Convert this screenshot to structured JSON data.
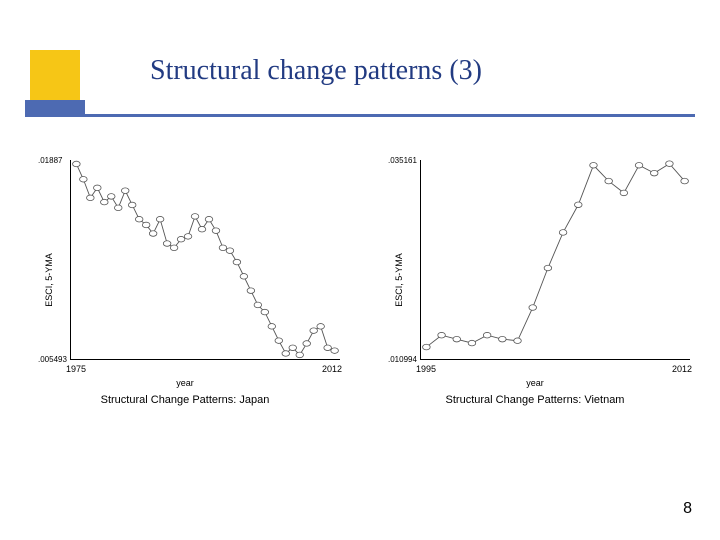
{
  "slide": {
    "title": "Structural change patterns (3)",
    "page_number": "8",
    "accent_yellow": "#f6c616",
    "accent_blue": "#4d6ab2",
    "title_color": "#223b82"
  },
  "chart_left": {
    "type": "line-scatter",
    "ylabel": "ESCI, 5-YMA",
    "xlabel": "year",
    "subtitle": "Structural Change Patterns: Japan",
    "y_tick_top": ".01887",
    "y_tick_bot": ".005493",
    "x_tick_left": "1975",
    "x_tick_right": "2012",
    "ylim": [
      0.005493,
      0.01887
    ],
    "xlim": [
      1975,
      2012
    ],
    "marker": "circle-open",
    "marker_size": 3.2,
    "line_color": "#555555",
    "line_width": 0.9,
    "background_color": "#ffffff",
    "series": [
      {
        "x": 1975,
        "y": 0.01887
      },
      {
        "x": 1976,
        "y": 0.0178
      },
      {
        "x": 1977,
        "y": 0.0165
      },
      {
        "x": 1978,
        "y": 0.0172
      },
      {
        "x": 1979,
        "y": 0.0162
      },
      {
        "x": 1980,
        "y": 0.0166
      },
      {
        "x": 1981,
        "y": 0.0158
      },
      {
        "x": 1982,
        "y": 0.017
      },
      {
        "x": 1983,
        "y": 0.016
      },
      {
        "x": 1984,
        "y": 0.015
      },
      {
        "x": 1985,
        "y": 0.0146
      },
      {
        "x": 1986,
        "y": 0.014
      },
      {
        "x": 1987,
        "y": 0.015
      },
      {
        "x": 1988,
        "y": 0.0133
      },
      {
        "x": 1989,
        "y": 0.013
      },
      {
        "x": 1990,
        "y": 0.0136
      },
      {
        "x": 1991,
        "y": 0.0138
      },
      {
        "x": 1992,
        "y": 0.0152
      },
      {
        "x": 1993,
        "y": 0.0143
      },
      {
        "x": 1994,
        "y": 0.015
      },
      {
        "x": 1995,
        "y": 0.0142
      },
      {
        "x": 1996,
        "y": 0.013
      },
      {
        "x": 1997,
        "y": 0.0128
      },
      {
        "x": 1998,
        "y": 0.012
      },
      {
        "x": 1999,
        "y": 0.011
      },
      {
        "x": 2000,
        "y": 0.01
      },
      {
        "x": 2001,
        "y": 0.009
      },
      {
        "x": 2002,
        "y": 0.0085
      },
      {
        "x": 2003,
        "y": 0.0075
      },
      {
        "x": 2004,
        "y": 0.0065
      },
      {
        "x": 2005,
        "y": 0.0056
      },
      {
        "x": 2006,
        "y": 0.006
      },
      {
        "x": 2007,
        "y": 0.0055
      },
      {
        "x": 2008,
        "y": 0.0063
      },
      {
        "x": 2009,
        "y": 0.0072
      },
      {
        "x": 2010,
        "y": 0.0075
      },
      {
        "x": 2011,
        "y": 0.006
      },
      {
        "x": 2012,
        "y": 0.0058
      }
    ]
  },
  "chart_right": {
    "type": "line-scatter",
    "ylabel": "ESCI, 5-YMA",
    "xlabel": "year",
    "subtitle": "Structural Change Patterns: Vietnam",
    "y_tick_top": ".035161",
    "y_tick_bot": ".010994",
    "x_tick_left": "1995",
    "x_tick_right": "2012",
    "ylim": [
      0.010994,
      0.035161
    ],
    "xlim": [
      1995,
      2012
    ],
    "marker": "circle-open",
    "marker_size": 3.2,
    "line_color": "#555555",
    "line_width": 0.9,
    "background_color": "#ffffff",
    "series": [
      {
        "x": 1995,
        "y": 0.012
      },
      {
        "x": 1996,
        "y": 0.0135
      },
      {
        "x": 1997,
        "y": 0.013
      },
      {
        "x": 1998,
        "y": 0.0125
      },
      {
        "x": 1999,
        "y": 0.0135
      },
      {
        "x": 2000,
        "y": 0.013
      },
      {
        "x": 2001,
        "y": 0.0128
      },
      {
        "x": 2002,
        "y": 0.017
      },
      {
        "x": 2003,
        "y": 0.022
      },
      {
        "x": 2004,
        "y": 0.0265
      },
      {
        "x": 2005,
        "y": 0.03
      },
      {
        "x": 2006,
        "y": 0.035
      },
      {
        "x": 2007,
        "y": 0.033
      },
      {
        "x": 2008,
        "y": 0.0315
      },
      {
        "x": 2009,
        "y": 0.035
      },
      {
        "x": 2010,
        "y": 0.034
      },
      {
        "x": 2011,
        "y": 0.0352
      },
      {
        "x": 2012,
        "y": 0.033
      }
    ]
  }
}
